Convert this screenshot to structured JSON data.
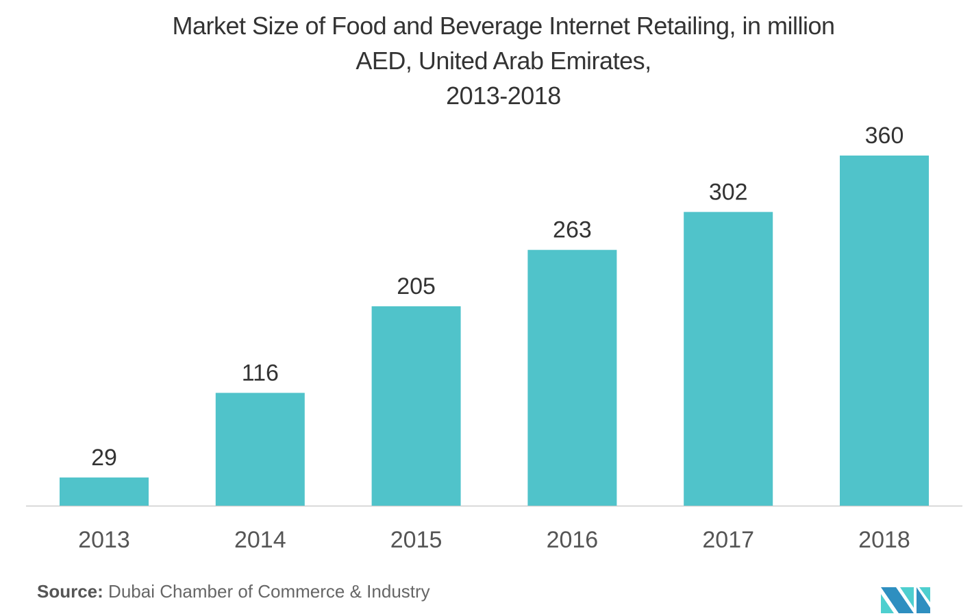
{
  "chart_data": {
    "type": "bar",
    "title_lines": [
      "Market Size of Food and Beverage Internet Retailing, in  million",
      "AED, United Arab Emirates,",
      "2013-2018"
    ],
    "categories": [
      "2013",
      "2014",
      "2015",
      "2016",
      "2017",
      "2018"
    ],
    "values": [
      29,
      116,
      205,
      263,
      302,
      360
    ],
    "xlabel": "",
    "ylabel": "",
    "ylim": [
      0,
      360
    ],
    "grid": false,
    "bar_color": "#50C3CA"
  },
  "source": {
    "label": "Source:",
    "text": " Dubai Chamber of Commerce & Industry"
  },
  "logo": {
    "name": "mordor-intelligence-logo",
    "colors": [
      "#2E8FC0",
      "#4ECFCF"
    ]
  }
}
